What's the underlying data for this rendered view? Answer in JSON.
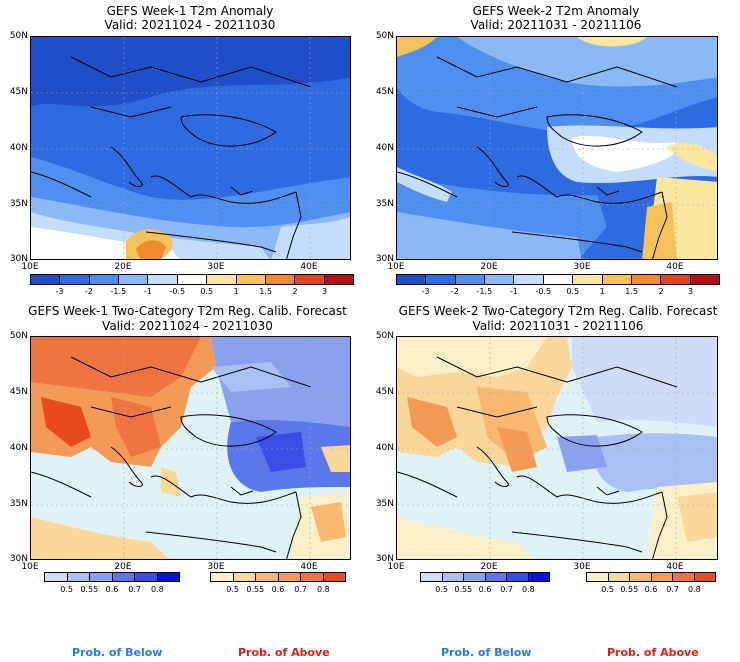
{
  "panels": [
    {
      "title": "GEFS Week-1 T2m Anomaly",
      "valid": "Valid: 20211024 - 20211030"
    },
    {
      "title": "GEFS Week-2 T2m Anomaly",
      "valid": "Valid: 20211031 - 20211106"
    },
    {
      "title": "GEFS Week-1 Two-Category T2m Reg. Calib. Forecast",
      "valid": "Valid: 20211024 - 20211030"
    },
    {
      "title": "GEFS Week-2 Two-Category T2m Reg. Calib. Forecast",
      "valid": "Valid: 20211031 - 20211106"
    }
  ],
  "lat_labels": [
    "50N",
    "45N",
    "40N",
    "35N",
    "30N"
  ],
  "lon_labels": [
    "10E",
    "20E",
    "30E",
    "40E"
  ],
  "anomaly_colorbar": {
    "labels": [
      "-3",
      "-2",
      "-1.5",
      "-1",
      "-0.5",
      "0.5",
      "1",
      "1.5",
      "2",
      "3"
    ],
    "colors": [
      "#1f4fc8",
      "#2e6ae0",
      "#4f8ff0",
      "#8ab9f5",
      "#c3ddfa",
      "#ffffff",
      "#fbe6a0",
      "#f7c25a",
      "#f08a2e",
      "#e0451c",
      "#b01010"
    ]
  },
  "below_colorbar": {
    "labels": [
      "0.5",
      "0.55",
      "0.6",
      "0.7",
      "0.8"
    ],
    "colors": [
      "#cfdcf7",
      "#a9c0f2",
      "#8aa2ee",
      "#5a78ea",
      "#3a4ee6",
      "#1010e0"
    ]
  },
  "above_colorbar": {
    "labels": [
      "0.5",
      "0.55",
      "0.6",
      "0.7",
      "0.8"
    ],
    "colors": [
      "#fdf0c8",
      "#fbd89a",
      "#f8b870",
      "#f59a55",
      "#f07440",
      "#ea4b1e"
    ]
  },
  "footer": {
    "prob_below": "Prob. of Below",
    "prob_above": "Prob. of Above"
  }
}
